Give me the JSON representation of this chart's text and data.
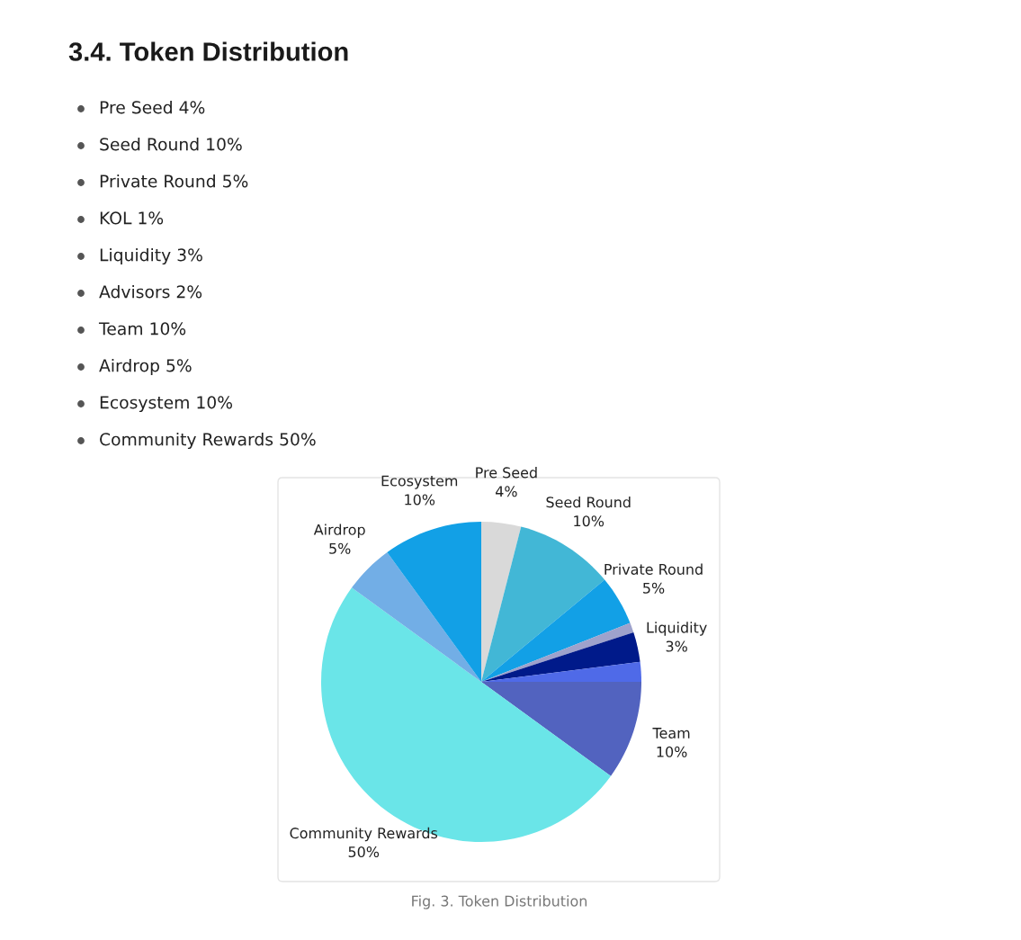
{
  "chart_data": {
    "type": "pie",
    "title": "3.4. Token Distribution",
    "categories": [
      "Pre Seed",
      "Seed Round",
      "Private Round",
      null,
      "Liquidity",
      null,
      "Team",
      "Community Rewards",
      "Airdrop",
      "Ecosystem"
    ],
    "values": [
      4,
      10,
      5,
      1,
      3,
      2,
      10,
      50,
      5,
      10
    ],
    "value_labels": [
      "4%",
      "10%",
      "5%",
      null,
      "3%",
      null,
      "10%",
      "50%",
      "5%",
      "10%"
    ],
    "colors": [
      "#d9d9d9",
      "#42b7d6",
      "#12a0e6",
      "#9ea2cc",
      "#001a8a",
      "#4f6ae8",
      "#5263bf",
      "#6ae5e8",
      "#72aee6",
      "#12a0e6"
    ],
    "annotations": [
      "Pre Seed 4%",
      "Seed Round 10%",
      "Private Round 5%",
      "KOL 1%",
      "Liquidity 3%",
      "Advisors 2%",
      "Team 10%",
      "Airdrop 5%",
      "Ecosystem 10%",
      "Community Rewards 50%",
      "Fig. 3. Token Distribution"
    ]
  }
}
